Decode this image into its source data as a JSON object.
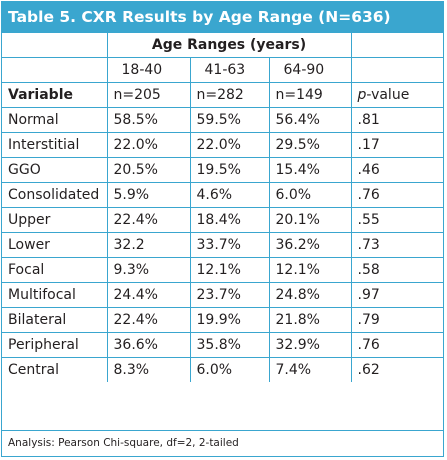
{
  "title": "Table 5. CXR Results by Age Range (N=636)",
  "group_header": "Age Ranges (years)",
  "age_ranges": [
    "18-40",
    "41-63",
    "64-90"
  ],
  "header": {
    "variable": "Variable",
    "n1": "n=205",
    "n2": "n=282",
    "n3": "n=149",
    "p_italic": "p",
    "p_rest": "-value"
  },
  "rows": [
    {
      "label": "Normal",
      "v1": "58.5%",
      "v2": "59.5%",
      "v3": "56.4%",
      "p": ".81"
    },
    {
      "label": "Interstitial",
      "v1": "22.0%",
      "v2": "22.0%",
      "v3": "29.5%",
      "p": ".17"
    },
    {
      "label": "GGO",
      "v1": "20.5%",
      "v2": "19.5%",
      "v3": "15.4%",
      "p": ".46"
    },
    {
      "label": "Consolidated",
      "v1": "5.9%",
      "v2": "4.6%",
      "v3": "6.0%",
      "p": ".76"
    },
    {
      "label": "Upper",
      "v1": "22.4%",
      "v2": "18.4%",
      "v3": "20.1%",
      "p": ".55"
    },
    {
      "label": "Lower",
      "v1": "32.2",
      "v2": "33.7%",
      "v3": "36.2%",
      "p": ".73"
    },
    {
      "label": "Focal",
      "v1": "9.3%",
      "v2": "12.1%",
      "v3": "12.1%",
      "p": ".58"
    },
    {
      "label": "Multifocal",
      "v1": "24.4%",
      "v2": "23.7%",
      "v3": "24.8%",
      "p": ".97"
    },
    {
      "label": "Bilateral",
      "v1": "22.4%",
      "v2": "19.9%",
      "v3": "21.8%",
      "p": ".79"
    },
    {
      "label": "Peripheral",
      "v1": "36.6%",
      "v2": "35.8%",
      "v3": "32.9%",
      "p": ".76"
    },
    {
      "label": "Central",
      "v1": "8.3%",
      "v2": "6.0%",
      "v3": "7.4%",
      "p": ".62"
    }
  ],
  "footnote": "Analysis: Pearson Chi-square, df=2, 2-tailed",
  "colors": {
    "accent": "#3aa6cf",
    "text": "#231f20",
    "title_text": "#ffffff"
  }
}
